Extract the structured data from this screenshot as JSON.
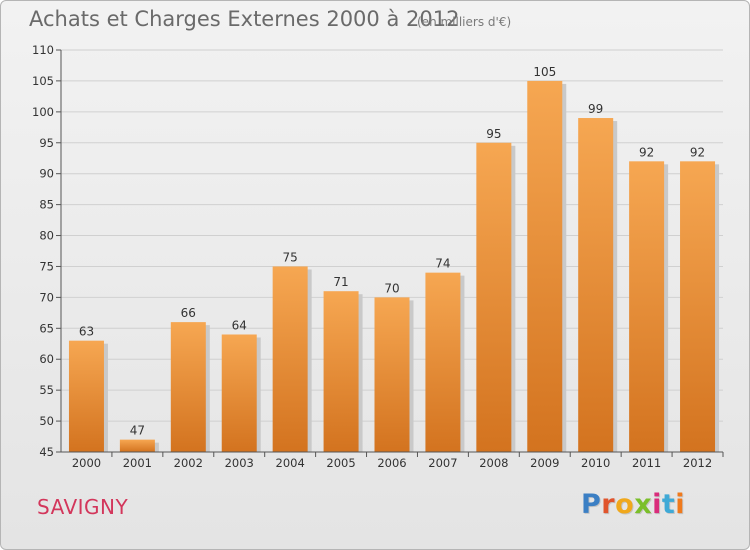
{
  "header": {
    "title": "Achats et Charges Externes 2000 à 2012",
    "subtitle": "(en milliers d'€)"
  },
  "footer": {
    "location": "SAVIGNY",
    "brand": [
      "P",
      "r",
      "o",
      "x",
      "i",
      "t",
      "i"
    ],
    "brand_colors": [
      "#3b7fc4",
      "#e0542c",
      "#f0a81c",
      "#7bbf2a",
      "#d92c7b",
      "#3fa9d6",
      "#f07a1c"
    ]
  },
  "colors": {
    "bar_top": "#f6a752",
    "bar_bottom": "#d3731f",
    "bar_shadow": "#c9c9c9",
    "grid": "#d0d0d0",
    "axis_text": "#333333"
  },
  "chart_data": {
    "type": "bar",
    "categories": [
      "2000",
      "2001",
      "2002",
      "2003",
      "2004",
      "2005",
      "2006",
      "2007",
      "2008",
      "2009",
      "2010",
      "2011",
      "2012"
    ],
    "values": [
      63,
      47,
      66,
      64,
      75,
      71,
      70,
      74,
      95,
      105,
      99,
      92,
      92
    ],
    "title": "Achats et Charges Externes 2000 à 2012",
    "ylim": [
      45,
      110
    ],
    "yticks": [
      45,
      50,
      55,
      60,
      65,
      70,
      75,
      80,
      85,
      90,
      95,
      100,
      105,
      110
    ],
    "grid": true,
    "data_labels": true
  }
}
